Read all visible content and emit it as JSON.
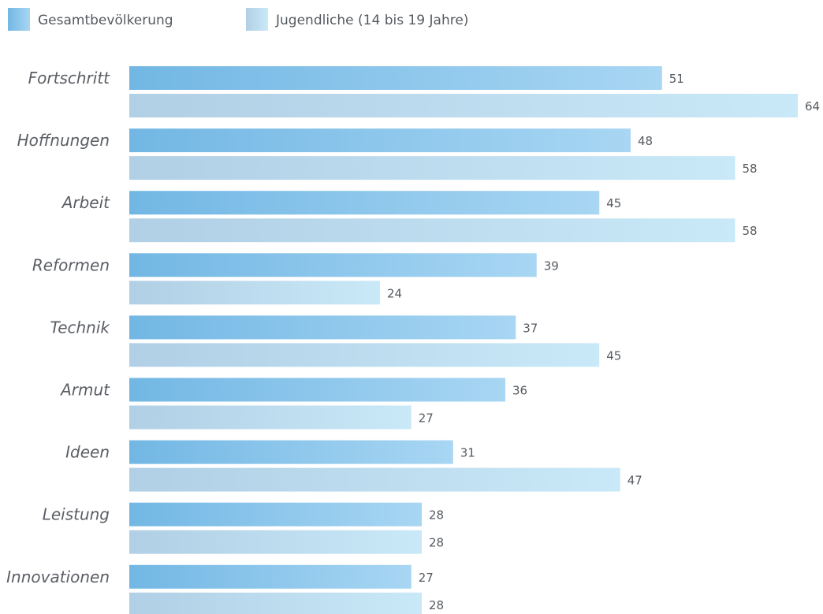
{
  "chart_data": {
    "type": "bar",
    "orientation": "horizontal",
    "categories": [
      "Fortschritt",
      "Hoffnungen",
      "Arbeit",
      "Reformen",
      "Technik",
      "Armut",
      "Ideen",
      "Leistung",
      "Innovationen"
    ],
    "series": [
      {
        "name": "Gesamtbevölkerung",
        "values": [
          51,
          48,
          45,
          39,
          37,
          36,
          31,
          28,
          27
        ],
        "colors": [
          "#72b7e4",
          "#a8d6f3"
        ]
      },
      {
        "name": "Jugendliche (14 bis 19 Jahre)",
        "values": [
          64,
          58,
          58,
          24,
          45,
          27,
          47,
          28,
          28
        ],
        "colors": [
          "#b1cfe5",
          "#c9e9f8"
        ]
      }
    ],
    "legend_position": "top-left",
    "grid": false,
    "xlim": [
      0,
      64
    ]
  }
}
